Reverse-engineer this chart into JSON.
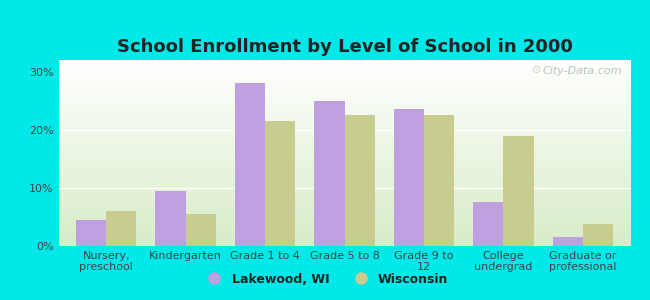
{
  "title": "School Enrollment by Level of School in 2000",
  "categories": [
    "Nursery,\npreschool",
    "Kindergarten",
    "Grade 1 to 4",
    "Grade 5 to 8",
    "Grade 9 to\n12",
    "College\nundergrad",
    "Graduate or\nprofessional"
  ],
  "lakewood_values": [
    4.5,
    9.5,
    28.0,
    25.0,
    23.5,
    7.5,
    1.5
  ],
  "wisconsin_values": [
    6.0,
    5.5,
    21.5,
    22.5,
    22.5,
    19.0,
    3.8
  ],
  "lakewood_color": "#bf9fdf",
  "wisconsin_color": "#c8cc8f",
  "background_outer": "#00e8e8",
  "background_inner_top": "#ffffff",
  "background_inner_bottom": "#d8ecc8",
  "title_fontsize": 13,
  "tick_label_fontsize": 8,
  "legend_fontsize": 9,
  "ylim": [
    0,
    32
  ],
  "yticks": [
    0,
    10,
    20,
    30
  ],
  "ytick_labels": [
    "0%",
    "10%",
    "20%",
    "30%"
  ],
  "bar_width": 0.38,
  "watermark_text": "City-Data.com"
}
